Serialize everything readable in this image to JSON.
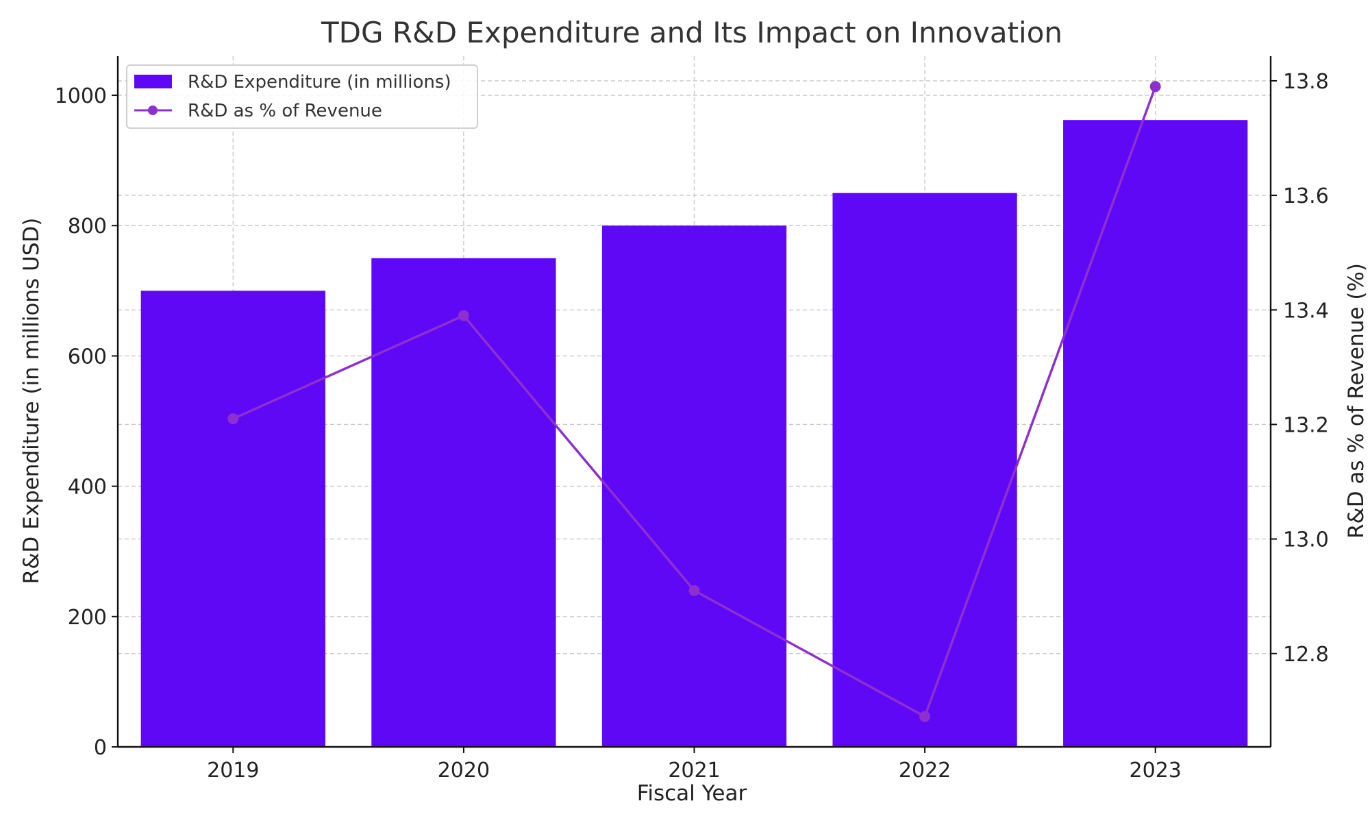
{
  "chart_data": {
    "type": "bar",
    "title": "TDG R&D Expenditure and Its Impact on Innovation",
    "xlabel": "Fiscal Year",
    "ylabel": "R&D Expenditure (in millions USD)",
    "y2label": "R&D as % of Revenue (%)",
    "categories": [
      "2019",
      "2020",
      "2021",
      "2022",
      "2023"
    ],
    "ylim": [
      0,
      1060
    ],
    "y2lim": [
      12.637,
      13.843
    ],
    "yticks": [
      0,
      200,
      400,
      600,
      800,
      1000
    ],
    "y2ticks": [
      12.8,
      13.0,
      13.2,
      13.4,
      13.6,
      13.8
    ],
    "grid": true,
    "legend_position": "upper-left",
    "series": [
      {
        "name": "R&D Expenditure (in millions)",
        "type": "bar",
        "axis": "left",
        "color": "#5e08f5",
        "values": [
          700,
          750,
          800,
          850,
          962
        ]
      },
      {
        "name": "R&D as % of Revenue",
        "type": "line",
        "axis": "right",
        "marker": "circle",
        "color": "#8e2fcf",
        "values": [
          13.21,
          13.39,
          12.91,
          12.69,
          13.79
        ]
      }
    ]
  }
}
